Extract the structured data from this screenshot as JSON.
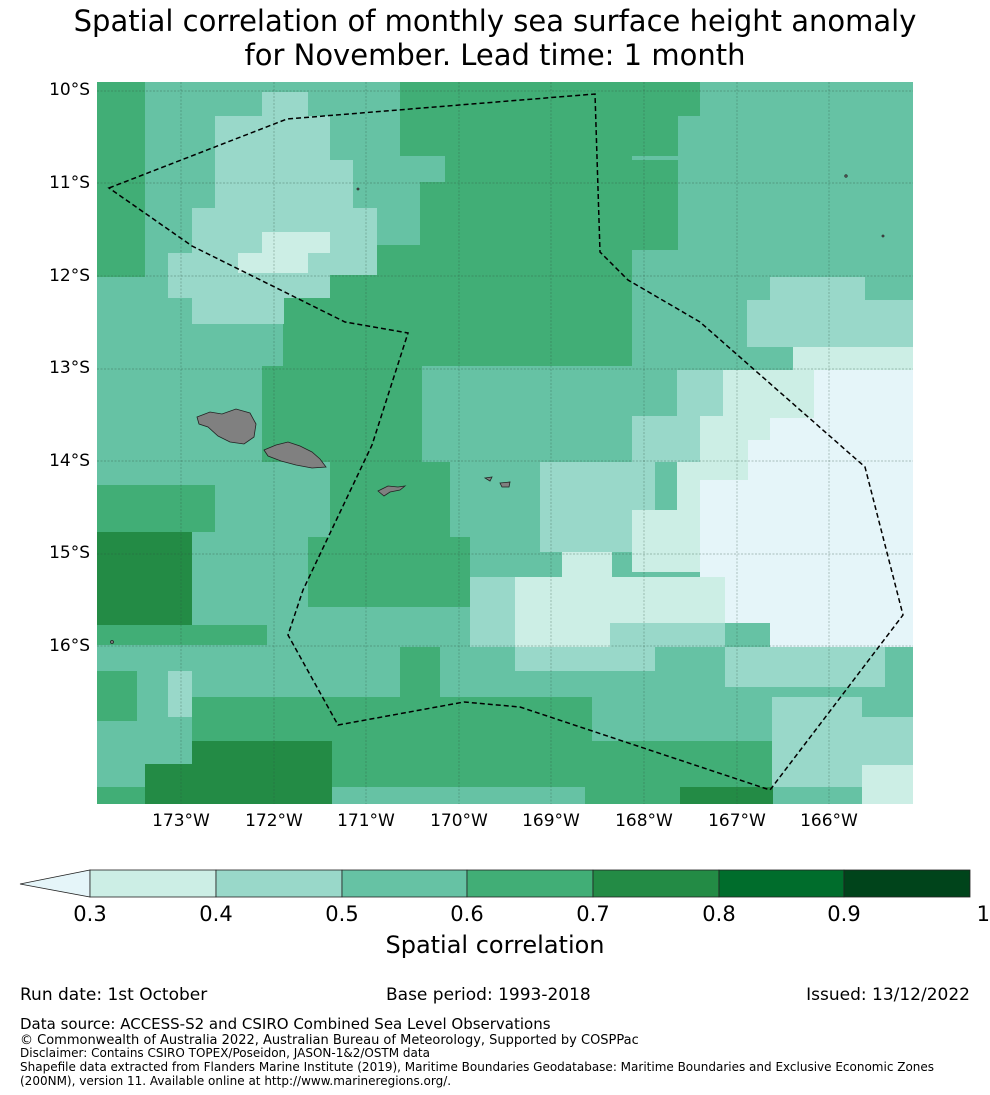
{
  "title": {
    "line1": "Spatial correlation of monthly sea surface height anomaly",
    "line2": "for November. Lead time: 1 month"
  },
  "map": {
    "lat_labels": [
      "10°S",
      "11°S",
      "12°S",
      "13°S",
      "14°S",
      "15°S",
      "16°S"
    ],
    "lon_labels": [
      "173°W",
      "172°W",
      "171°W",
      "170°W",
      "169°W",
      "168°W",
      "167°W",
      "166°W"
    ],
    "lon_range": [
      -174.0,
      -165.14
    ],
    "lat_range": [
      -9.9,
      -17.7
    ],
    "land_color": "#808080",
    "boundary_style": "dashed black"
  },
  "colorbar": {
    "title": "Spatial correlation",
    "ticks": [
      "0.3",
      "0.4",
      "0.5",
      "0.6",
      "0.7",
      "0.8",
      "0.9",
      "1"
    ],
    "extend": "min",
    "under_color": "#e5f5f9",
    "colors": [
      "#cceee5",
      "#99d8c9",
      "#66c2a4",
      "#41ae76",
      "#238b45",
      "#006d2c",
      "#00441b"
    ]
  },
  "footer": {
    "run_date": "Run date: 1st October",
    "base_period": "Base period: 1993-2018",
    "issued": "Issued: 13/12/2022",
    "data_source": "Data source: ACCESS-S2 and CSIRO Combined Sea Level Observations",
    "copyright": "© Commonwealth of Australia 2022, Australian Bureau of Meteorology, Supported by COSPPac",
    "disclaimer": "Disclaimer: Contains CSIRO TOPEX/Poseidon, JASON-1&2/OSTM data",
    "shapefile1": "Shapefile data extracted from Flanders Marine Institute (2019), Maritime Boundaries Geodatabase: Maritime Boundaries and Exclusive Economic Zones",
    "shapefile2": "(200NM), version 11. Available online at http://www.marineregions.org/."
  }
}
